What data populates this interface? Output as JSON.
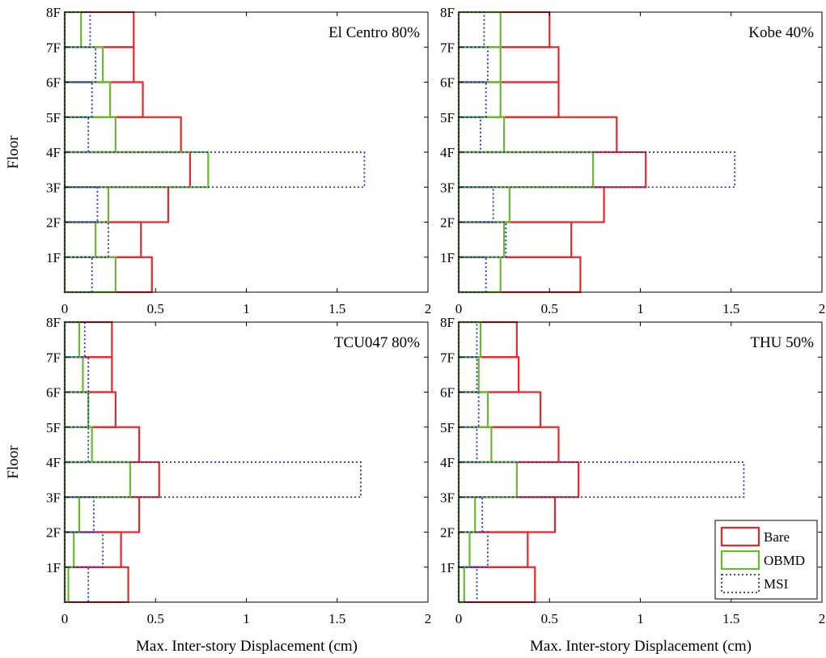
{
  "colors": {
    "bare": "#e8262b",
    "obmd": "#6ab92d",
    "msi": "#1a33b5"
  },
  "legend": {
    "placement": "bottom-right of last panel",
    "items": [
      {
        "label": "Bare",
        "color": "#e8262b",
        "style": "solid"
      },
      {
        "label": "OBMD",
        "color": "#6ab92d",
        "style": "solid"
      },
      {
        "label": "MSI",
        "color": "#1a33b5",
        "style": "dotted"
      }
    ]
  },
  "chart_data": [
    {
      "type": "bar",
      "title": "El Centro 80%",
      "xlabel": "",
      "ylabel": "Floor",
      "xlim": [
        0,
        2
      ],
      "xticks": [
        "0",
        "0.5",
        "1",
        "1.5",
        "2"
      ],
      "categories": [
        "1F",
        "2F",
        "3F",
        "4F",
        "5F",
        "6F",
        "7F",
        "8F"
      ],
      "series": [
        {
          "name": "Bare",
          "values": [
            0.48,
            0.42,
            0.57,
            0.69,
            0.64,
            0.43,
            0.38,
            0.38
          ]
        },
        {
          "name": "OBMD",
          "values": [
            0.28,
            0.17,
            0.24,
            0.79,
            0.28,
            0.25,
            0.21,
            0.09
          ]
        },
        {
          "name": "MSI",
          "values": [
            0.15,
            0.24,
            0.18,
            1.65,
            0.13,
            0.15,
            0.17,
            0.14
          ]
        }
      ]
    },
    {
      "type": "bar",
      "title": "Kobe 40%",
      "xlabel": "",
      "ylabel": "",
      "xlim": [
        0,
        2
      ],
      "xticks": [
        "0",
        "0.5",
        "1",
        "1.5",
        "2"
      ],
      "categories": [
        "1F",
        "2F",
        "3F",
        "4F",
        "5F",
        "6F",
        "7F",
        "8F"
      ],
      "series": [
        {
          "name": "Bare",
          "values": [
            0.67,
            0.62,
            0.8,
            1.03,
            0.87,
            0.55,
            0.55,
            0.5
          ]
        },
        {
          "name": "OBMD",
          "values": [
            0.23,
            0.25,
            0.28,
            0.74,
            0.25,
            0.23,
            0.23,
            0.23
          ]
        },
        {
          "name": "MSI",
          "values": [
            0.15,
            0.26,
            0.19,
            1.52,
            0.12,
            0.15,
            0.16,
            0.14
          ]
        }
      ]
    },
    {
      "type": "bar",
      "title": "TCU047 80%",
      "xlabel": "Max. Inter-story Displacement (cm)",
      "ylabel": "Floor",
      "xlim": [
        0,
        2
      ],
      "xticks": [
        "0",
        "0.5",
        "1",
        "1.5",
        "2"
      ],
      "categories": [
        "1F",
        "2F",
        "3F",
        "4F",
        "5F",
        "6F",
        "7F",
        "8F"
      ],
      "series": [
        {
          "name": "Bare",
          "values": [
            0.35,
            0.31,
            0.41,
            0.52,
            0.41,
            0.28,
            0.26,
            0.26
          ]
        },
        {
          "name": "OBMD",
          "values": [
            0.02,
            0.05,
            0.08,
            0.36,
            0.15,
            0.13,
            0.1,
            0.08
          ]
        },
        {
          "name": "MSI",
          "values": [
            0.13,
            0.21,
            0.16,
            1.63,
            0.13,
            0.13,
            0.13,
            0.11
          ]
        }
      ]
    },
    {
      "type": "bar",
      "title": "THU 50%",
      "xlabel": "Max. Inter-story Displacement (cm)",
      "ylabel": "",
      "xlim": [
        0,
        2
      ],
      "xticks": [
        "0",
        "0.5",
        "1",
        "1.5",
        "2"
      ],
      "categories": [
        "1F",
        "2F",
        "3F",
        "4F",
        "5F",
        "6F",
        "7F",
        "8F"
      ],
      "series": [
        {
          "name": "Bare",
          "values": [
            0.42,
            0.38,
            0.53,
            0.66,
            0.55,
            0.45,
            0.33,
            0.32
          ]
        },
        {
          "name": "OBMD",
          "values": [
            0.03,
            0.06,
            0.09,
            0.32,
            0.18,
            0.16,
            0.11,
            0.12
          ]
        },
        {
          "name": "MSI",
          "values": [
            0.1,
            0.16,
            0.13,
            1.57,
            0.1,
            0.11,
            0.1,
            0.1
          ]
        }
      ]
    }
  ]
}
